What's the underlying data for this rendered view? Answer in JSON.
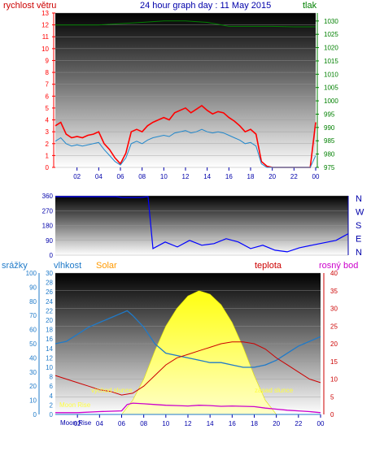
{
  "header": {
    "title": "24 hour graph day : 11 May 2015",
    "left_label": "rychlost větru",
    "right_label": "tlak"
  },
  "colors": {
    "wind": "#ff0000",
    "wind_avg": "#2288cc",
    "pressure": "#008000",
    "direction": "#0000ff",
    "humidity": "#1f7ac9",
    "solar": "#ffff33",
    "temperature": "#cc0000",
    "dewpoint": "#cc00cc",
    "rain": "#1f7ac9"
  },
  "chart_data": [
    {
      "type": "line",
      "title": "24 hour graph day : 11 May 2015",
      "x_tick_labels": [
        "02",
        "04",
        "06",
        "08",
        "10",
        "12",
        "14",
        "16",
        "18",
        "20",
        "22",
        "00"
      ],
      "left_axis": {
        "label": "rychlost větru",
        "ylim": [
          0,
          13
        ],
        "ticks": [
          0,
          1,
          2,
          3,
          4,
          5,
          6,
          7,
          8,
          9,
          10,
          11,
          12,
          13
        ]
      },
      "right_axis": {
        "label": "tlak",
        "ylim": [
          975,
          1033
        ],
        "ticks": [
          975,
          980,
          985,
          990,
          995,
          1000,
          1005,
          1010,
          1015,
          1020,
          1025,
          1030
        ]
      },
      "series": [
        {
          "name": "wind_gust",
          "axis": "left",
          "x_hours": [
            0,
            0.5,
            1,
            1.5,
            2,
            2.5,
            3,
            3.5,
            4,
            4.5,
            5,
            5.5,
            6,
            6.5,
            7,
            7.5,
            8,
            8.5,
            9,
            9.5,
            10,
            10.5,
            11,
            11.5,
            12,
            12.5,
            13,
            13.5,
            14,
            14.5,
            15,
            15.5,
            16,
            16.5,
            17,
            17.5,
            18,
            18.5,
            19,
            19.5,
            20,
            20.5,
            21,
            21.5,
            22,
            22.5,
            23,
            23.5,
            24
          ],
          "values": [
            3.5,
            3.8,
            2.8,
            2.5,
            2.6,
            2.5,
            2.7,
            2.8,
            3.0,
            2.0,
            1.5,
            0.8,
            0.3,
            1.2,
            3.0,
            3.2,
            3.0,
            3.5,
            3.8,
            4.0,
            4.2,
            4.0,
            4.6,
            4.8,
            5.0,
            4.6,
            4.9,
            5.2,
            4.8,
            4.5,
            4.7,
            4.6,
            4.2,
            3.9,
            3.5,
            3.0,
            3.2,
            2.8,
            0.5,
            0.1,
            0,
            0,
            0,
            0,
            0,
            0,
            0,
            0,
            3.8
          ]
        },
        {
          "name": "wind_avg",
          "axis": "left",
          "x_hours": [
            0,
            0.5,
            1,
            1.5,
            2,
            2.5,
            3,
            3.5,
            4,
            4.5,
            5,
            5.5,
            6,
            6.5,
            7,
            7.5,
            8,
            8.5,
            9,
            9.5,
            10,
            10.5,
            11,
            11.5,
            12,
            12.5,
            13,
            13.5,
            14,
            14.5,
            15,
            15.5,
            16,
            16.5,
            17,
            17.5,
            18,
            18.5,
            19,
            19.5,
            20,
            20.5,
            21,
            21.5,
            22,
            22.5,
            23,
            23.5,
            24
          ],
          "values": [
            2.2,
            2.5,
            2.0,
            1.8,
            1.9,
            1.8,
            1.9,
            2.0,
            2.1,
            1.5,
            1.0,
            0.5,
            0.2,
            0.8,
            2.0,
            2.2,
            2.0,
            2.3,
            2.5,
            2.6,
            2.7,
            2.6,
            2.9,
            3.0,
            3.1,
            2.9,
            3.0,
            3.2,
            3.0,
            2.9,
            3.0,
            2.9,
            2.7,
            2.5,
            2.3,
            2.0,
            2.1,
            1.8,
            0.3,
            0,
            0,
            0,
            0,
            0,
            0,
            0,
            0,
            0,
            1.0
          ]
        },
        {
          "name": "pressure",
          "axis": "right",
          "x_hours": [
            0,
            2,
            4,
            6,
            8,
            10,
            12,
            14,
            16,
            18,
            20,
            22,
            24
          ],
          "values": [
            1028.5,
            1028.5,
            1028.5,
            1029,
            1029.5,
            1030,
            1030,
            1029.5,
            1028,
            1028,
            1028,
            1027.8,
            1027.8
          ]
        }
      ]
    },
    {
      "type": "scatter",
      "title": "",
      "left_axis": {
        "ylim": [
          0,
          360
        ],
        "ticks": [
          0,
          90,
          180,
          270,
          360
        ]
      },
      "right_axis_labels": [
        "N",
        "W",
        "S",
        "E",
        "N"
      ],
      "series": [
        {
          "name": "wind_direction",
          "x_hours": [
            0,
            1,
            2,
            3,
            4,
            5,
            5.5,
            6,
            7,
            7.6,
            8,
            9,
            10,
            11,
            12,
            13,
            14,
            15,
            16,
            17,
            18,
            19,
            20,
            21,
            22,
            23,
            23.5,
            24
          ],
          "values": [
            355,
            355,
            355,
            355,
            355,
            355,
            350,
            350,
            350,
            355,
            40,
            80,
            50,
            90,
            60,
            70,
            100,
            80,
            40,
            60,
            30,
            20,
            45,
            60,
            75,
            90,
            110,
            130
          ]
        }
      ]
    },
    {
      "type": "line",
      "title": "",
      "x_tick_labels": [
        "02",
        "04",
        "06",
        "08",
        "10",
        "12",
        "14",
        "16",
        "18",
        "20",
        "22",
        "00"
      ],
      "rain_axis": {
        "label": "srážky",
        "ylim": [
          0,
          100
        ],
        "ticks": [
          0,
          10,
          20,
          30,
          40,
          50,
          60,
          70,
          80,
          90,
          100
        ]
      },
      "humidity_axis": {
        "label": "vlhkost",
        "ylim": [
          0,
          30
        ],
        "ticks": [
          0,
          2,
          4,
          6,
          8,
          10,
          12,
          14,
          16,
          18,
          20,
          22,
          24,
          26,
          28,
          30
        ]
      },
      "solar_label": "Solar",
      "temp_axis": {
        "label": "teplota",
        "ylim": [
          0,
          40
        ],
        "ticks": [
          0,
          5,
          10,
          15,
          20,
          25,
          30,
          35,
          40
        ]
      },
      "dew_label": "rosný bod",
      "annotations": [
        "východ slunce",
        "západ slunce",
        "Moon Rise",
        "Moon Rise"
      ],
      "series": [
        {
          "name": "humidity",
          "axis": "humidity",
          "x_hours": [
            0,
            1,
            2,
            3,
            4,
            5,
            6,
            6.5,
            7,
            8,
            9,
            10,
            11,
            12,
            13,
            14,
            15,
            16,
            17,
            18,
            19,
            20,
            21,
            22,
            23,
            24
          ],
          "values": [
            15,
            15.5,
            17,
            18.5,
            19.5,
            20.5,
            21.5,
            22,
            21,
            18.5,
            15,
            13,
            12.5,
            12,
            11.5,
            11,
            11,
            10.5,
            10,
            10,
            10.5,
            11.5,
            13,
            14.5,
            15.5,
            16.5
          ]
        },
        {
          "name": "temperature",
          "axis": "temp",
          "x_hours": [
            0,
            1,
            2,
            3,
            4,
            5,
            6,
            7,
            8,
            9,
            10,
            11,
            12,
            13,
            14,
            15,
            16,
            17,
            18,
            19,
            20,
            21,
            22,
            23,
            24
          ],
          "values": [
            11,
            10,
            9,
            8,
            7,
            6.5,
            5.5,
            6,
            8,
            11,
            14,
            16,
            17,
            18,
            19,
            20,
            20.5,
            20.5,
            20,
            18.5,
            16,
            14,
            12,
            10,
            9
          ]
        },
        {
          "name": "dewpoint",
          "axis": "temp",
          "x_hours": [
            0,
            2,
            4,
            6,
            6.5,
            7,
            8,
            9,
            10,
            11,
            12,
            13,
            14,
            15,
            16,
            17,
            18,
            19,
            20,
            21,
            22,
            23,
            24
          ],
          "values": [
            0.5,
            0.5,
            0.8,
            1,
            2.8,
            3.2,
            3,
            2.8,
            2.6,
            2.5,
            2.4,
            2.6,
            2.5,
            2.3,
            2.4,
            2.3,
            2.2,
            1.8,
            1.5,
            1.2,
            1,
            0.8,
            0.5
          ]
        },
        {
          "name": "solar",
          "axis": "temp",
          "x_hours": [
            6,
            7,
            8,
            9,
            10,
            11,
            12,
            13,
            14,
            15,
            16,
            17,
            18,
            19,
            20
          ],
          "values": [
            0,
            4,
            10,
            18,
            25,
            30,
            33.5,
            35,
            34,
            31,
            26,
            19,
            11,
            4,
            0
          ]
        },
        {
          "name": "rain",
          "axis": "rain",
          "x_hours": [
            0,
            24
          ],
          "values": [
            0,
            0
          ]
        }
      ]
    }
  ],
  "panel3_labels": {
    "rain": "srážky",
    "humidity": "vlhkost",
    "solar": "Solar",
    "temperature": "teplota",
    "dewpoint": "rosný bod",
    "sunrise": "východ slunce",
    "sunset": "západ slunce",
    "moonrise": "Moon Rise",
    "moonrise2": "Moon Rise"
  }
}
